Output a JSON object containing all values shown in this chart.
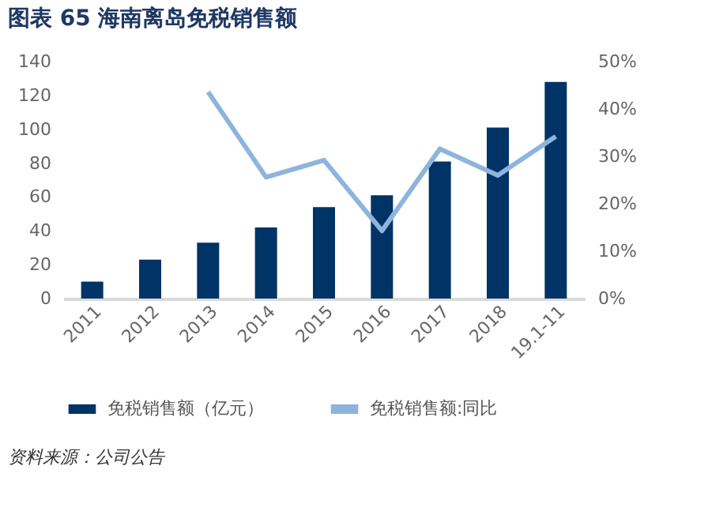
{
  "chart_data": {
    "type": "bar",
    "title": "图表 65   海南离岛免税销售额",
    "categories": [
      "2011",
      "2012",
      "2013",
      "2014",
      "2015",
      "2016",
      "2017",
      "2018",
      "19.1-11"
    ],
    "series": [
      {
        "name": "免税销售额（亿元）",
        "color": "#003366",
        "values": [
          10,
          23,
          33,
          42,
          54,
          61,
          81,
          101,
          128
        ]
      },
      {
        "name": "免税销售额:同比",
        "type": "line",
        "axis": "y2",
        "color": "#8eb4de",
        "values": [
          null,
          null,
          43.6,
          25.6,
          29.2,
          14.3,
          31.6,
          26,
          34.2
        ]
      }
    ],
    "ylim": [
      0,
      140
    ],
    "yticks": [
      0,
      20,
      40,
      60,
      80,
      100,
      120,
      140
    ],
    "y2lim": [
      0,
      50
    ],
    "y2ticks": [
      {
        "value": 0,
        "label": "0%"
      },
      {
        "value": 10,
        "label": "10%"
      },
      {
        "value": 20,
        "label": "20%"
      },
      {
        "value": 30,
        "label": "30%"
      },
      {
        "value": 40,
        "label": "40%"
      },
      {
        "value": 50,
        "label": "50%"
      }
    ],
    "grid": false,
    "legend": "bottom",
    "annotations": [
      "资料来源：公司公告"
    ]
  }
}
